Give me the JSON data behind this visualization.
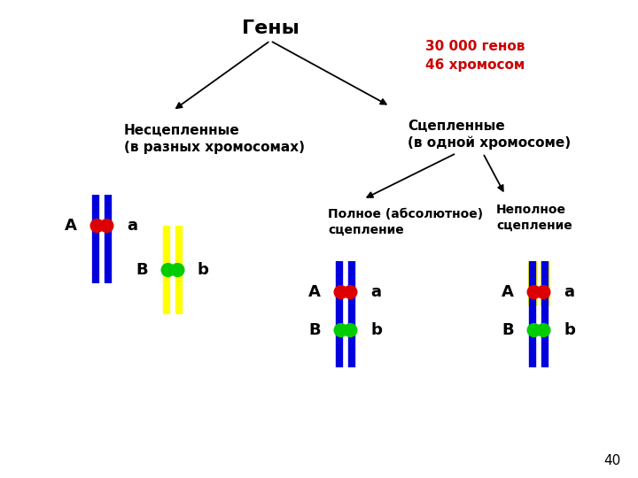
{
  "title": "Гены",
  "subtitle": "30 000 генов\n46 хромосом",
  "subtitle_color": "#cc0000",
  "node_left": "Несцепленные\n(в разных хромосомах)",
  "node_right": "Сцепленные\n(в одной хромосоме)",
  "node_left2": "Полное (абсолютное)\nсцепление",
  "node_right2": "Неполное\nсцепление",
  "page_number": "40",
  "bg_color": "#ffffff",
  "blue": "#0000dd",
  "yellow": "#ffff00",
  "red": "#dd0000",
  "green": "#00cc00"
}
